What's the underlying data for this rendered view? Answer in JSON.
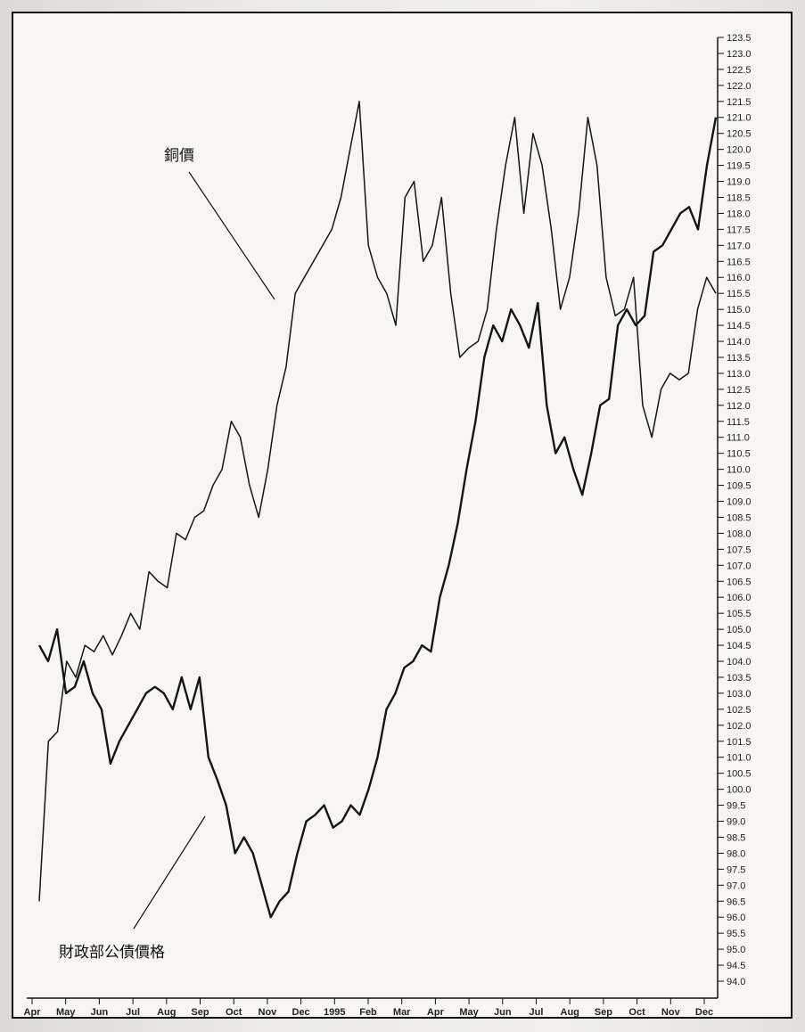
{
  "chart_data": {
    "type": "line",
    "title": "",
    "xlabel": "",
    "ylabel": "",
    "x_ticks": [
      "Apr",
      "May",
      "Jun",
      "Jul",
      "Aug",
      "Sep",
      "Oct",
      "Nov",
      "Dec",
      "1995",
      "Feb",
      "Mar",
      "Apr",
      "May",
      "Jun",
      "Jul",
      "Aug",
      "Sep",
      "Oct",
      "Nov",
      "Dec"
    ],
    "y_ticks": [
      "123.5",
      "123.0",
      "122.5",
      "122.0",
      "121.5",
      "121.0",
      "120.5",
      "120.0",
      "119.5",
      "119.0",
      "118.5",
      "118.0",
      "117.5",
      "117.0",
      "116.5",
      "116.0",
      "115.5",
      "115.0",
      "114.5",
      "114.0",
      "113.5",
      "113.0",
      "112.5",
      "112.0",
      "111.5",
      "111.0",
      "110.5",
      "110.0",
      "109.5",
      "109.0",
      "108.5",
      "108.0",
      "107.5",
      "107.0",
      "106.5",
      "106.0",
      "105.5",
      "105.0",
      "104.5",
      "104.0",
      "103.5",
      "103.0",
      "102.5",
      "102.0",
      "101.5",
      "101.0",
      "100.5",
      "100.0",
      "99.5",
      "99.0",
      "98.5",
      "98.0",
      "97.5",
      "97.0",
      "96.5",
      "96.0",
      "95.5",
      "95.0",
      "94.5",
      "94.0"
    ],
    "ylim": [
      94.0,
      123.5
    ],
    "series": [
      {
        "name": "銅價",
        "values": [
          96.5,
          101.5,
          101.8,
          104.0,
          103.5,
          104.5,
          104.3,
          104.8,
          104.2,
          104.8,
          105.5,
          105.0,
          106.8,
          106.5,
          106.3,
          108.0,
          107.8,
          108.5,
          108.7,
          109.5,
          110.0,
          111.5,
          111.0,
          109.5,
          108.5,
          110.0,
          112.0,
          113.2,
          115.5,
          116.0,
          116.5,
          117.0,
          117.5,
          118.5,
          120.0,
          121.5,
          117.0,
          116.0,
          115.5,
          114.5,
          118.5,
          119.0,
          116.5,
          117.0,
          118.5,
          115.5,
          113.5,
          113.8,
          114.0,
          115.0,
          117.5,
          119.5,
          121.0,
          118.0,
          120.5,
          119.5,
          117.5,
          115.0,
          116.0,
          118.0,
          121.0,
          119.5,
          116.0,
          114.8,
          115.0,
          116.0,
          112.0,
          111.0,
          112.5,
          113.0,
          112.8,
          113.0,
          115.0,
          116.0,
          115.5
        ]
      },
      {
        "name": "財政部公債價格",
        "values": [
          104.5,
          104.0,
          105.0,
          103.0,
          103.2,
          104.0,
          103.0,
          102.5,
          100.8,
          101.5,
          102.0,
          102.5,
          103.0,
          103.2,
          103.0,
          102.5,
          103.5,
          102.5,
          103.5,
          101.0,
          100.3,
          99.5,
          98.0,
          98.5,
          98.0,
          97.0,
          96.0,
          96.5,
          96.8,
          98.0,
          99.0,
          99.2,
          99.5,
          98.8,
          99.0,
          99.5,
          99.2,
          100.0,
          101.0,
          102.5,
          103.0,
          103.8,
          104.0,
          104.5,
          104.3,
          106.0,
          107.0,
          108.3,
          110.0,
          111.5,
          113.5,
          114.5,
          114.0,
          115.0,
          114.5,
          113.8,
          115.2,
          112.0,
          110.5,
          111.0,
          110.0,
          109.2,
          110.5,
          112.0,
          112.2,
          114.5,
          115.0,
          114.5,
          114.8,
          116.8,
          117.0,
          117.5,
          118.0,
          118.2,
          117.5,
          119.5,
          121.0
        ]
      }
    ],
    "annotations": [
      "銅價",
      "財政部公債價格"
    ],
    "grid": false,
    "legend": "none"
  }
}
